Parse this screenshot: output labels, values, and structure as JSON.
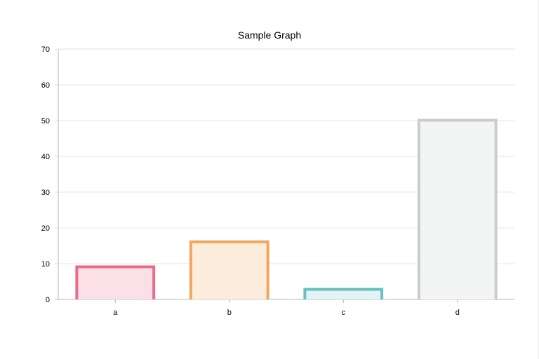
{
  "chart_data": {
    "type": "bar",
    "title": "Sample Graph",
    "categories": [
      "a",
      "b",
      "c",
      "d"
    ],
    "series": [
      {
        "values": [
          9.5,
          16.5,
          3.2,
          50.5
        ]
      }
    ],
    "xlabel": "",
    "ylabel": "",
    "ylim": [
      0,
      70
    ],
    "yticks": [
      "0",
      "10",
      "20",
      "30",
      "40",
      "50",
      "60",
      "70"
    ],
    "grid": true,
    "legend": "none",
    "bar_border_colors": [
      "#ec6b86",
      "#f2a65a",
      "#6cc1c0",
      "#c9cbcf"
    ],
    "bar_fill_colors": [
      "#fbe1e7",
      "#fcecdc",
      "#e1f3f2",
      "#f3f4f4"
    ]
  }
}
